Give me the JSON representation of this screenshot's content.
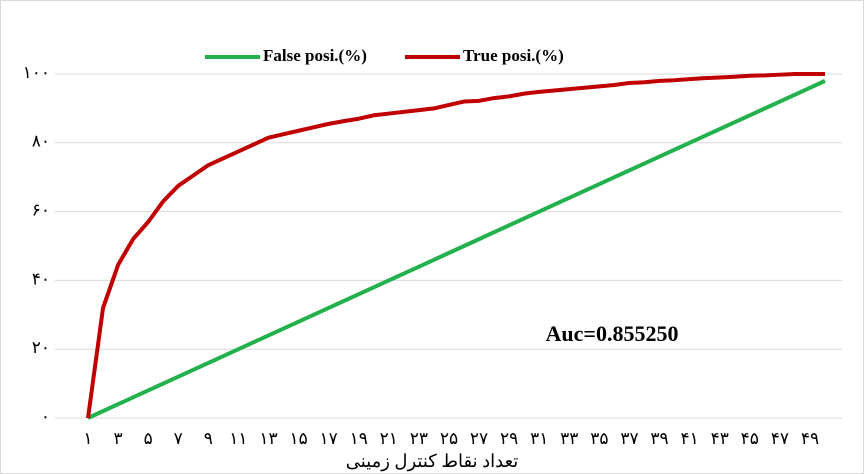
{
  "chart_data": {
    "type": "line",
    "categories": [
      "۱",
      null,
      "۳",
      null,
      "۵",
      null,
      "۷",
      null,
      "۹",
      null,
      "۱۱",
      null,
      "۱۳",
      null,
      "۱۵",
      null,
      "۱۷",
      null,
      "۱۹",
      null,
      "۲۱",
      null,
      "۲۳",
      null,
      "۲۵",
      null,
      "۲۷",
      null,
      "۲۹",
      null,
      "۳۱",
      null,
      "۳۳",
      null,
      "۳۵",
      null,
      "۳۷",
      null,
      "۳۹",
      null,
      "۴۱",
      null,
      "۴۳",
      null,
      "۴۵",
      null,
      "۴۷",
      null,
      "۴۹",
      null
    ],
    "series": [
      {
        "name": "False posi.(%)",
        "color": "#22b14c",
        "values": [
          0,
          2,
          4,
          6,
          8,
          10,
          12,
          14,
          16,
          18,
          20,
          22,
          24,
          26,
          28,
          30,
          32,
          34,
          36,
          38,
          40,
          42,
          44,
          46,
          48,
          50,
          52,
          54,
          56,
          58,
          60,
          62,
          64,
          66,
          68,
          70,
          72,
          74,
          76,
          78,
          80,
          82,
          84,
          86,
          88,
          90,
          92,
          94,
          96,
          98
        ]
      },
      {
        "name": "True posi.(%)",
        "color": "#c00000",
        "values": [
          0,
          32,
          44.5,
          52,
          57,
          63,
          67.5,
          70.5,
          73.5,
          75.5,
          77.5,
          79.5,
          81.5,
          82.5,
          83.5,
          84.5,
          85.5,
          86.3,
          87,
          88,
          88.5,
          89,
          89.5,
          90,
          91,
          92,
          92.2,
          93,
          93.5,
          94.3,
          94.8,
          95.2,
          95.6,
          96,
          96.4,
          96.8,
          97.4,
          97.6,
          98,
          98.2,
          98.5,
          98.8,
          99,
          99.2,
          99.5,
          99.6,
          99.8,
          100,
          100,
          100
        ]
      }
    ],
    "xlabel": "تعداد نقاط کنترل زمینی",
    "annotation": "Auc=0.855250",
    "ylim": [
      0,
      100
    ],
    "yticks": [
      {
        "value": 0,
        "label": "۰"
      },
      {
        "value": 20,
        "label": "۲۰"
      },
      {
        "value": 40,
        "label": "۴۰"
      },
      {
        "value": 60,
        "label": "۶۰"
      },
      {
        "value": 80,
        "label": "۸۰"
      },
      {
        "value": 100,
        "label": "۱۰۰"
      }
    ],
    "grid": true,
    "legend": "top"
  }
}
